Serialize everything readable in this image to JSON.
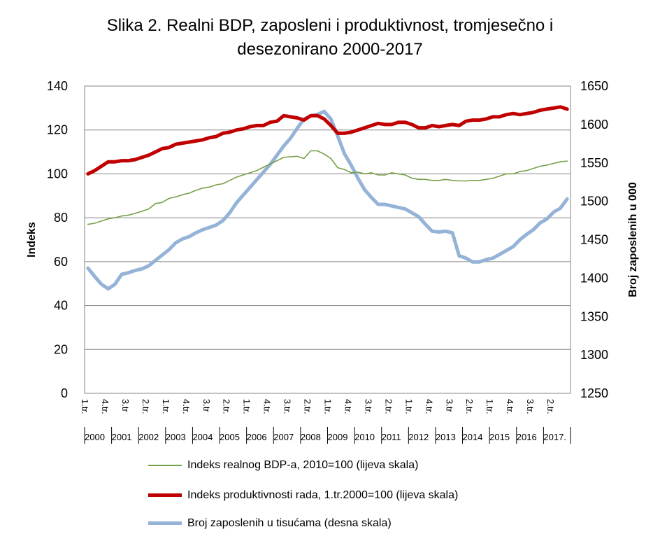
{
  "chart_data": {
    "type": "line",
    "title_lines": [
      "Slika 2.  Realni BDP, zaposleni i produktivnost, tromjesečno i",
      "desezonirano  2000-2017"
    ],
    "ylabel_left": "Indeks",
    "ylabel_right": "Broj zaposlenih u 000",
    "ylim_left": [
      0,
      140
    ],
    "ylim_right": [
      1250,
      1650
    ],
    "yticks_left": [
      "0",
      "20",
      "40",
      "60",
      "80",
      "100",
      "120",
      "140"
    ],
    "yticks_right": [
      "1250",
      "1300",
      "1350",
      "1400",
      "1450",
      "1500",
      "1550",
      "1600",
      "1650"
    ],
    "x_quarter_labels": [
      "1.tr.",
      "4.tr.",
      "3.tr",
      "2.tr.",
      "1.tr.",
      "4.tr.",
      "3.tr",
      "2.tr.",
      "1.tr.",
      "4.tr.",
      "3.tr.",
      "2.tr.",
      "1.tr.",
      "4.tr.",
      "3.tr.",
      "2.tr.",
      "1.tr.",
      "4.tr.",
      "3.tr",
      "2.tr.",
      "1.tr.",
      "4.tr.",
      "3.tr.",
      "2.tr."
    ],
    "x_year_labels": [
      "2000",
      "2001",
      "2002",
      "2003",
      "2004",
      "2005",
      "2006",
      "2007",
      "2008",
      "2009",
      "2010",
      "2011",
      "2012",
      "2013",
      "2014",
      "2015",
      "2016",
      "2017."
    ],
    "grid": true,
    "legend_position": "bottom",
    "series": [
      {
        "name": "Indeks realnog BDP-a, 2010=100 (lijeva skala)",
        "axis": "left",
        "color": "#77A04A",
        "values": [
          77,
          77.5,
          78.5,
          79.5,
          80,
          80.8,
          81.2,
          82,
          83,
          84,
          86.5,
          87,
          88.8,
          89.5,
          90.5,
          91.2,
          92.5,
          93.5,
          94,
          95,
          95.5,
          97,
          98.5,
          99.5,
          100.5,
          101.5,
          103,
          104.5,
          106,
          107.5,
          107.8,
          108,
          107,
          110.5,
          110.5,
          109,
          107,
          102.8,
          102,
          100.5,
          100.8,
          100,
          100.5,
          99.5,
          99.5,
          100.5,
          100,
          99.5,
          98,
          97.5,
          97.5,
          97,
          97,
          97.5,
          97,
          96.8,
          96.8,
          97,
          97,
          97.5,
          98,
          99,
          100,
          100,
          101,
          101.5,
          102.5,
          103.5,
          104,
          104.8,
          105.5,
          105.8
        ]
      },
      {
        "name": "Indeks produktivnosti rada, 1.tr.2000=100 (lijeva skala)",
        "axis": "left",
        "color": "#C00000",
        "values": [
          100,
          101.5,
          103.5,
          105.5,
          105.5,
          106,
          106,
          106.5,
          107.5,
          108.5,
          110,
          111.5,
          112,
          113.5,
          114,
          114.5,
          115,
          115.5,
          116.5,
          117,
          118.5,
          119,
          120,
          120.5,
          121.5,
          122,
          122,
          123.5,
          124,
          126.5,
          126,
          125.5,
          124.5,
          126.5,
          126.5,
          125,
          122,
          118.5,
          118.5,
          119,
          120,
          121,
          122,
          123,
          122.5,
          122.5,
          123.5,
          123.5,
          122.5,
          121,
          121,
          122,
          121.5,
          122,
          122.5,
          122,
          124,
          124.5,
          124.5,
          125,
          126,
          126,
          127,
          127.5,
          127,
          127.5,
          128,
          129,
          129.5,
          130,
          130.5,
          129.5
        ]
      },
      {
        "name": "Broj zaposlenih u tisućama (desna skala)",
        "axis": "right",
        "color": "#95B3D7",
        "values": [
          1413,
          1402,
          1392,
          1386,
          1392,
          1405,
          1407,
          1410,
          1412,
          1416,
          1423,
          1430,
          1437,
          1446,
          1451,
          1454,
          1459,
          1463,
          1466,
          1469,
          1475,
          1485,
          1498,
          1508,
          1518,
          1528,
          1538,
          1548,
          1560,
          1572,
          1582,
          1595,
          1607,
          1611,
          1613,
          1617,
          1607,
          1585,
          1562,
          1547,
          1530,
          1515,
          1505,
          1496,
          1496,
          1494,
          1492,
          1490,
          1485,
          1480,
          1470,
          1461,
          1460,
          1461,
          1459,
          1429,
          1426,
          1421,
          1421,
          1424,
          1426,
          1431,
          1436,
          1441,
          1450,
          1457,
          1463,
          1472,
          1477,
          1486,
          1491,
          1503
        ]
      }
    ]
  }
}
